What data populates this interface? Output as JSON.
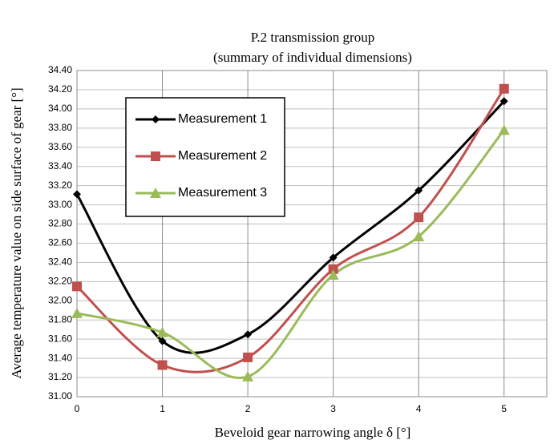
{
  "chart_data": {
    "type": "line",
    "title": "P.2 transmission group",
    "subtitle": "(summary of individual dimensions)",
    "x_label": "Beveloid gear narrowing angle δ [°]",
    "y_label": "Average temperature value on side surface of gear [°]",
    "x": [
      0,
      1,
      2,
      3,
      4,
      5
    ],
    "xlim": [
      0,
      5.5
    ],
    "xticks": [
      0,
      1,
      2,
      3,
      4,
      5
    ],
    "ylim": [
      31,
      34.4
    ],
    "yticks": [
      {
        "value": 31,
        "label": "31.00"
      },
      {
        "value": 31.2,
        "label": "31.20"
      },
      {
        "value": 31.4,
        "label": "31.40"
      },
      {
        "value": 31.6,
        "label": "31.60"
      },
      {
        "value": 31.8,
        "label": "31.80"
      },
      {
        "value": 32,
        "label": "32.00"
      },
      {
        "value": 32.2,
        "label": "32.20"
      },
      {
        "value": 32.4,
        "label": "32.40"
      },
      {
        "value": 32.6,
        "label": "32.60"
      },
      {
        "value": 32.8,
        "label": "32.80"
      },
      {
        "value": 33,
        "label": "33.00"
      },
      {
        "value": 33.2,
        "label": "33.20"
      },
      {
        "value": 33.4,
        "label": "33.40"
      },
      {
        "value": 33.6,
        "label": "33.60"
      },
      {
        "value": 33.8,
        "label": "33.80"
      },
      {
        "value": 34,
        "label": "34.00"
      },
      {
        "value": 34.2,
        "label": "34.20"
      },
      {
        "value": 34.4,
        "label": "34.40"
      }
    ],
    "grid": true,
    "smooth": true,
    "legend": "upper left",
    "series": [
      {
        "name": "Measurement 1",
        "color": "#000000",
        "marker": "diamond",
        "values": [
          33.11,
          31.58,
          31.65,
          32.45,
          33.15,
          34.08
        ]
      },
      {
        "name": "Measurement 2",
        "color": "#c0504d",
        "marker": "square",
        "values": [
          32.15,
          31.33,
          31.41,
          32.33,
          32.87,
          34.21
        ]
      },
      {
        "name": "Measurement 3",
        "color": "#9bbb59",
        "marker": "triangle",
        "values": [
          31.87,
          31.67,
          31.21,
          32.27,
          32.67,
          33.78
        ]
      }
    ]
  }
}
